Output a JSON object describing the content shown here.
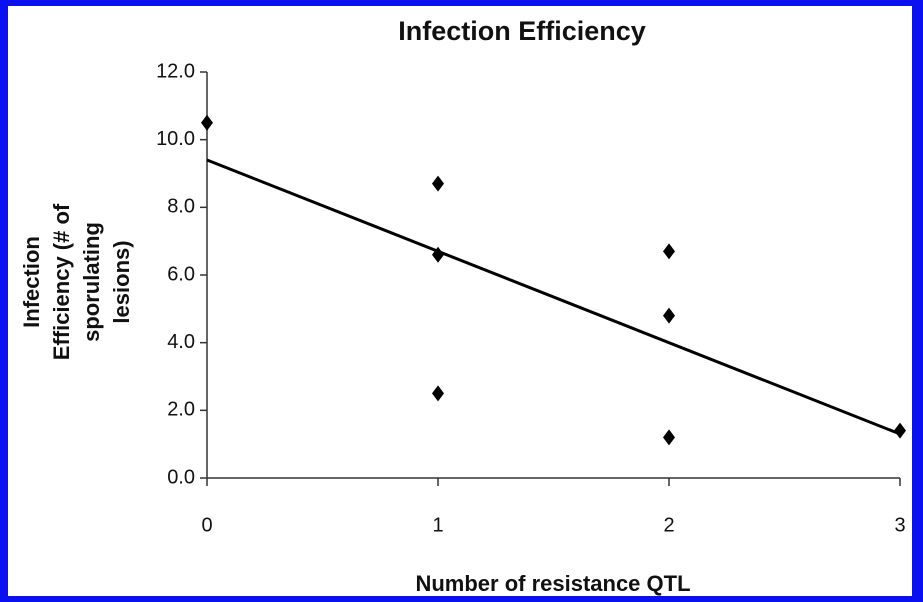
{
  "chart_data": {
    "type": "scatter",
    "title": "Infection Efficiency",
    "xlabel": "Number of resistance QTL",
    "ylabel": [
      "Infection",
      "Efficiency (# of",
      "sporulating",
      "lesions)"
    ],
    "x": [
      0,
      1,
      1,
      1,
      2,
      2,
      2,
      3
    ],
    "values": [
      10.5,
      8.7,
      6.6,
      2.5,
      6.7,
      4.8,
      1.2,
      1.4
    ],
    "color": "#000000",
    "trendline": {
      "x": [
        0,
        3
      ],
      "values": [
        9.4,
        1.3
      ],
      "color": "#000000"
    },
    "xlim": [
      0,
      3
    ],
    "xticks": [
      0,
      1,
      2,
      3
    ],
    "ylim": [
      0,
      12
    ],
    "yticks": [
      {
        "value": 0,
        "label": "0.0"
      },
      {
        "value": 2,
        "label": "2.0"
      },
      {
        "value": 4,
        "label": "4.0"
      },
      {
        "value": 6,
        "label": "6.0"
      },
      {
        "value": 8,
        "label": "8.0"
      },
      {
        "value": 10,
        "label": "10.0"
      },
      {
        "value": 12,
        "label": "12.0"
      }
    ]
  }
}
